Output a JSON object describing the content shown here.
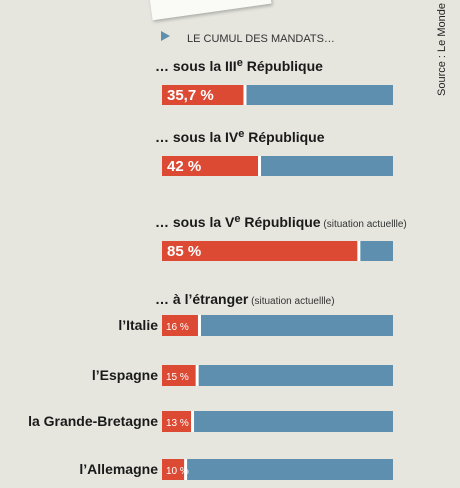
{
  "header": {
    "title": "LE CUMUL DES MANDATS…",
    "source": "Source : Le Monde"
  },
  "colors": {
    "accent": "#dc4a34",
    "bar": "#5e8fae",
    "background": "#e6e6df",
    "text": "#1a1a1a"
  },
  "chart_data": {
    "type": "bar",
    "orientation": "horizontal",
    "title": "LE CUMUL DES MANDATS…",
    "xlim": [
      0,
      100
    ],
    "groups": [
      {
        "label": "… sous la III",
        "sup": "e",
        "label_end": " République",
        "note": "",
        "value": 35.7,
        "value_label": "35,7 %"
      },
      {
        "label": "… sous la IV",
        "sup": "e",
        "label_end": " République",
        "note": "",
        "value": 42,
        "value_label": "42 %"
      },
      {
        "label": "… sous la V",
        "sup": "e",
        "label_end": " République",
        "note": "(situation actuellle)",
        "value": 85,
        "value_label": "85 %"
      }
    ],
    "abroad": {
      "heading": "… à l’étranger",
      "note": "(situation actuellle)",
      "rows": [
        {
          "country": "l’Italie",
          "value": 16,
          "value_label": "16 %"
        },
        {
          "country": "l’Espagne",
          "value": 15,
          "value_label": "15 %"
        },
        {
          "country": "la Grande-Bretagne",
          "value": 13,
          "value_label": "13 %"
        },
        {
          "country": "l’Allemagne",
          "value": 10,
          "value_label": "10 %"
        }
      ]
    }
  }
}
